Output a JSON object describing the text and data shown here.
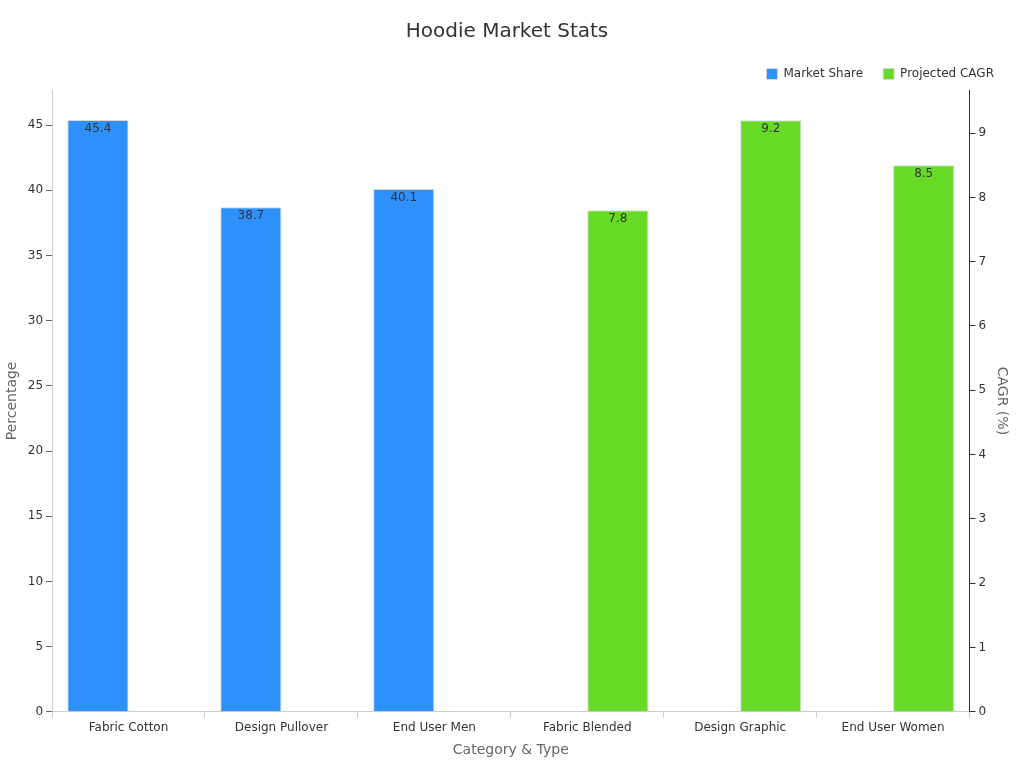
{
  "chart_data": {
    "type": "bar",
    "title": "Hoodie Market Stats",
    "xlabel": "Category & Type",
    "ylabel": "Percentage",
    "y2label": "CAGR (%)",
    "categories": [
      "Fabric Cotton",
      "Design Pullover",
      "End User Men",
      "Fabric Blended",
      "Design Graphic",
      "End User Women"
    ],
    "series": [
      {
        "name": "Market Share",
        "color": "#2e90fa",
        "values": [
          45.4,
          38.7,
          40.1,
          null,
          null,
          null
        ]
      },
      {
        "name": "Projected CAGR",
        "color": "#66da26",
        "axis": "y2",
        "values": [
          null,
          null,
          null,
          7.8,
          9.2,
          8.5
        ]
      }
    ],
    "ylim": [
      0,
      47.7
    ],
    "yticks": [
      0,
      5,
      10,
      15,
      20,
      25,
      30,
      35,
      40,
      45
    ],
    "y2lim": [
      0,
      9.67
    ],
    "y2ticks": [
      0,
      1,
      2,
      3,
      4,
      5,
      6,
      7,
      8,
      9
    ],
    "data_labels": true,
    "legend": "top right"
  }
}
